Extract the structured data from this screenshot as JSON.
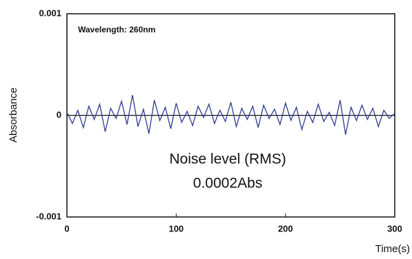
{
  "chart_data": {
    "type": "line",
    "annotations": [
      "Wavelength: 260nm",
      "Noise level (RMS)",
      "0.0002Abs"
    ],
    "ylabel": "Absorbance",
    "xlabel": "Time(s)",
    "x": [
      0,
      5,
      10,
      15,
      20,
      25,
      30,
      35,
      40,
      45,
      50,
      55,
      60,
      65,
      70,
      75,
      80,
      85,
      90,
      95,
      100,
      105,
      110,
      115,
      120,
      125,
      130,
      135,
      140,
      145,
      150,
      155,
      160,
      165,
      170,
      175,
      180,
      185,
      190,
      195,
      200,
      205,
      210,
      215,
      220,
      225,
      230,
      235,
      240,
      245,
      250,
      255,
      260,
      265,
      270,
      275,
      280,
      285,
      290,
      295,
      300
    ],
    "values": [
      3e-05,
      -8e-05,
      5e-05,
      -0.00012,
      9e-05,
      -4e-05,
      0.00011,
      -0.00016,
      7e-05,
      -3e-05,
      0.00014,
      -9e-05,
      0.0002,
      -0.00011,
      6e-05,
      -0.00018,
      0.00015,
      -5e-05,
      8e-05,
      -0.00013,
      0.00012,
      -7e-05,
      4e-05,
      -0.0001,
      9e-05,
      -2e-05,
      0.00011,
      -8e-05,
      5e-05,
      -6e-05,
      0.00013,
      -0.00011,
      7e-05,
      -4e-05,
      9e-05,
      -0.00012,
      0.0001,
      -3e-05,
      6e-05,
      -9e-05,
      0.00012,
      -5e-05,
      8e-05,
      -0.00014,
      4e-05,
      -7e-05,
      0.00011,
      -6e-05,
      3e-05,
      -0.0001,
      0.00015,
      -0.00019,
      8e-05,
      -5e-05,
      0.0001,
      -4e-05,
      7e-05,
      -0.00011,
      5e-05,
      -3e-05,
      2e-05
    ],
    "color": "#2e3b8f",
    "xlim": [
      0,
      300
    ],
    "xticks": [
      0,
      100,
      200,
      300
    ],
    "ylim": [
      -0.001,
      0.001
    ],
    "yticks": [
      -0.001,
      0,
      0.001
    ]
  }
}
